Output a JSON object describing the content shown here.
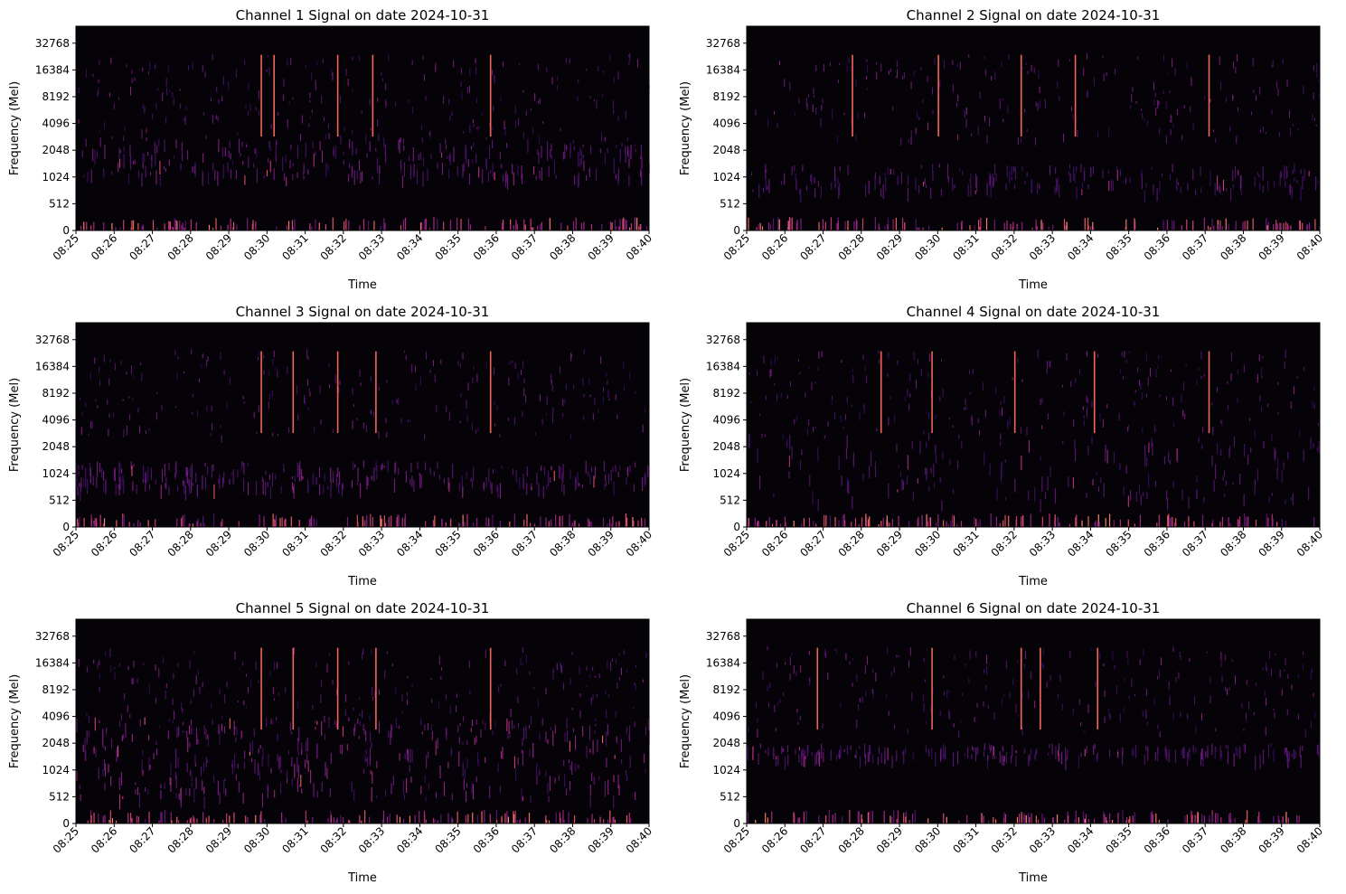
{
  "chart_data": [
    {
      "type": "heatmap",
      "title": "Channel 1 Signal on date 2024-10-31",
      "xlabel": "Time",
      "ylabel": "Frequency (Mel)",
      "x_ticks": [
        "08:25",
        "08:26",
        "08:27",
        "08:28",
        "08:29",
        "08:30",
        "08:31",
        "08:32",
        "08:33",
        "08:34",
        "08:35",
        "08:36",
        "08:37",
        "08:38",
        "08:39",
        "08:40"
      ],
      "y_ticks": [
        "0",
        "512",
        "1024",
        "2048",
        "4096",
        "8192",
        "16384",
        "32768"
      ],
      "colormap": "magma",
      "background": "#050308",
      "bands": [
        {
          "from": 1024,
          "to": 2896,
          "level": 0.55
        }
      ],
      "strong_times": [
        "08:29:50",
        "08:30:10",
        "08:31:50",
        "08:32:45",
        "08:35:50"
      ]
    },
    {
      "type": "heatmap",
      "title": "Channel 2 Signal on date 2024-10-31",
      "xlabel": "Time",
      "ylabel": "Frequency (Mel)",
      "x_ticks": [
        "08:25",
        "08:26",
        "08:27",
        "08:28",
        "08:29",
        "08:30",
        "08:31",
        "08:32",
        "08:33",
        "08:34",
        "08:35",
        "08:36",
        "08:37",
        "08:38",
        "08:39",
        "08:40"
      ],
      "y_ticks": [
        "0",
        "512",
        "1024",
        "2048",
        "4096",
        "8192",
        "16384",
        "32768"
      ],
      "colormap": "magma",
      "background": "#050308",
      "bands": [
        {
          "from": 724,
          "to": 1448,
          "level": 0.4
        }
      ],
      "strong_times": [
        "08:27:45",
        "08:30:00",
        "08:32:10",
        "08:33:35",
        "08:37:05"
      ]
    },
    {
      "type": "heatmap",
      "title": "Channel 3 Signal on date 2024-10-31",
      "xlabel": "Time",
      "ylabel": "Frequency (Mel)",
      "x_ticks": [
        "08:25",
        "08:26",
        "08:27",
        "08:28",
        "08:29",
        "08:30",
        "08:31",
        "08:32",
        "08:33",
        "08:34",
        "08:35",
        "08:36",
        "08:37",
        "08:38",
        "08:39",
        "08:40"
      ],
      "y_ticks": [
        "0",
        "512",
        "1024",
        "2048",
        "4096",
        "8192",
        "16384",
        "32768"
      ],
      "colormap": "magma",
      "background": "#050308",
      "bands": [
        {
          "from": 724,
          "to": 1448,
          "level": 0.55
        }
      ],
      "strong_times": [
        "08:29:50",
        "08:30:40",
        "08:31:50",
        "08:32:50",
        "08:35:50"
      ]
    },
    {
      "type": "heatmap",
      "title": "Channel 4 Signal on date 2024-10-31",
      "xlabel": "Time",
      "ylabel": "Frequency (Mel)",
      "x_ticks": [
        "08:25",
        "08:26",
        "08:27",
        "08:28",
        "08:29",
        "08:30",
        "08:31",
        "08:32",
        "08:33",
        "08:34",
        "08:35",
        "08:36",
        "08:37",
        "08:38",
        "08:39",
        "08:40"
      ],
      "y_ticks": [
        "0",
        "512",
        "1024",
        "2048",
        "4096",
        "8192",
        "16384",
        "32768"
      ],
      "colormap": "magma",
      "background": "#050308",
      "bands": [
        {
          "from": 512,
          "to": 2896,
          "level": 0.35
        }
      ],
      "strong_times": [
        "08:28:30",
        "08:29:50",
        "08:32:00",
        "08:34:05",
        "08:37:05"
      ]
    },
    {
      "type": "heatmap",
      "title": "Channel 5 Signal on date 2024-10-31",
      "xlabel": "Time",
      "ylabel": "Frequency (Mel)",
      "x_ticks": [
        "08:25",
        "08:26",
        "08:27",
        "08:28",
        "08:29",
        "08:30",
        "08:31",
        "08:32",
        "08:33",
        "08:34",
        "08:35",
        "08:36",
        "08:37",
        "08:38",
        "08:39",
        "08:40"
      ],
      "y_ticks": [
        "0",
        "512",
        "1024",
        "2048",
        "4096",
        "8192",
        "16384",
        "32768"
      ],
      "colormap": "magma",
      "background": "#050308",
      "bands": [
        {
          "from": 512,
          "to": 4096,
          "level": 0.75
        }
      ],
      "strong_times": [
        "08:29:50",
        "08:30:40",
        "08:31:50",
        "08:32:50",
        "08:35:50"
      ]
    },
    {
      "type": "heatmap",
      "title": "Channel 6 Signal on date 2024-10-31",
      "xlabel": "Time",
      "ylabel": "Frequency (Mel)",
      "x_ticks": [
        "08:25",
        "08:26",
        "08:27",
        "08:28",
        "08:29",
        "08:30",
        "08:31",
        "08:32",
        "08:33",
        "08:34",
        "08:35",
        "08:36",
        "08:37",
        "08:38",
        "08:39",
        "08:40"
      ],
      "y_ticks": [
        "0",
        "512",
        "1024",
        "2048",
        "4096",
        "8192",
        "16384",
        "32768"
      ],
      "colormap": "magma",
      "background": "#050308",
      "bands": [
        {
          "from": 1448,
          "to": 2048,
          "level": 0.45
        }
      ],
      "strong_times": [
        "08:26:50",
        "08:29:50",
        "08:32:10",
        "08:32:40",
        "08:34:10"
      ]
    }
  ]
}
